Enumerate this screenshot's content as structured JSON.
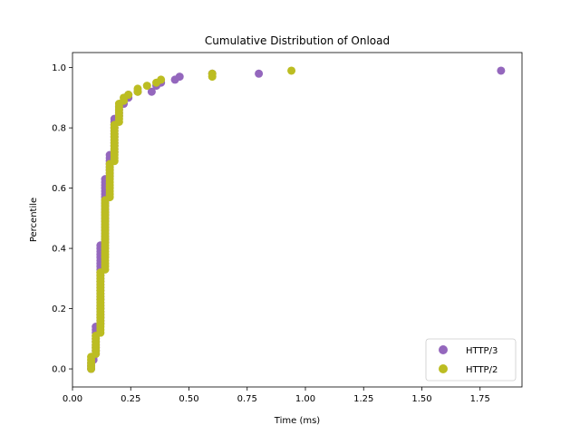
{
  "chart_data": {
    "type": "scatter",
    "title": "Cumulative Distribution of Onload",
    "xlabel": "Time (ms)",
    "ylabel": "Percentile",
    "xlim": [
      0.0,
      1.93
    ],
    "ylim": [
      -0.06,
      1.05
    ],
    "xticks": [
      0.0,
      0.25,
      0.5,
      0.75,
      1.0,
      1.25,
      1.5,
      1.75
    ],
    "xtick_labels": [
      "0.00",
      "0.25",
      "0.50",
      "0.75",
      "1.00",
      "1.25",
      "1.50",
      "1.75"
    ],
    "yticks": [
      0.0,
      0.2,
      0.4,
      0.6,
      0.8,
      1.0
    ],
    "ytick_labels": [
      "0.0",
      "0.2",
      "0.4",
      "0.6",
      "0.8",
      "1.0"
    ],
    "grid": false,
    "legend_position": "bottom-right",
    "series": [
      {
        "name": "HTTP/3",
        "color": "#9467bd",
        "points": [
          [
            0.08,
            0.0
          ],
          [
            0.08,
            0.01
          ],
          [
            0.08,
            0.02
          ],
          [
            0.09,
            0.03
          ],
          [
            0.09,
            0.04
          ],
          [
            0.1,
            0.05
          ],
          [
            0.1,
            0.06
          ],
          [
            0.1,
            0.07
          ],
          [
            0.1,
            0.08
          ],
          [
            0.1,
            0.09
          ],
          [
            0.1,
            0.1
          ],
          [
            0.1,
            0.11
          ],
          [
            0.1,
            0.12
          ],
          [
            0.1,
            0.13
          ],
          [
            0.1,
            0.14
          ],
          [
            0.12,
            0.15
          ],
          [
            0.12,
            0.16
          ],
          [
            0.12,
            0.17
          ],
          [
            0.12,
            0.18
          ],
          [
            0.12,
            0.19
          ],
          [
            0.12,
            0.2
          ],
          [
            0.12,
            0.21
          ],
          [
            0.12,
            0.22
          ],
          [
            0.12,
            0.23
          ],
          [
            0.12,
            0.24
          ],
          [
            0.12,
            0.25
          ],
          [
            0.12,
            0.26
          ],
          [
            0.12,
            0.27
          ],
          [
            0.12,
            0.28
          ],
          [
            0.12,
            0.29
          ],
          [
            0.12,
            0.3
          ],
          [
            0.12,
            0.31
          ],
          [
            0.12,
            0.32
          ],
          [
            0.12,
            0.33
          ],
          [
            0.12,
            0.34
          ],
          [
            0.12,
            0.35
          ],
          [
            0.12,
            0.36
          ],
          [
            0.12,
            0.37
          ],
          [
            0.12,
            0.38
          ],
          [
            0.12,
            0.39
          ],
          [
            0.12,
            0.4
          ],
          [
            0.12,
            0.41
          ],
          [
            0.14,
            0.42
          ],
          [
            0.14,
            0.43
          ],
          [
            0.14,
            0.44
          ],
          [
            0.14,
            0.45
          ],
          [
            0.14,
            0.46
          ],
          [
            0.14,
            0.47
          ],
          [
            0.14,
            0.48
          ],
          [
            0.14,
            0.49
          ],
          [
            0.14,
            0.5
          ],
          [
            0.14,
            0.51
          ],
          [
            0.14,
            0.52
          ],
          [
            0.14,
            0.53
          ],
          [
            0.14,
            0.54
          ],
          [
            0.14,
            0.55
          ],
          [
            0.14,
            0.56
          ],
          [
            0.14,
            0.57
          ],
          [
            0.14,
            0.58
          ],
          [
            0.14,
            0.59
          ],
          [
            0.14,
            0.6
          ],
          [
            0.14,
            0.61
          ],
          [
            0.14,
            0.62
          ],
          [
            0.14,
            0.63
          ],
          [
            0.16,
            0.64
          ],
          [
            0.16,
            0.65
          ],
          [
            0.16,
            0.66
          ],
          [
            0.16,
            0.67
          ],
          [
            0.16,
            0.68
          ],
          [
            0.16,
            0.69
          ],
          [
            0.16,
            0.7
          ],
          [
            0.16,
            0.71
          ],
          [
            0.18,
            0.72
          ],
          [
            0.18,
            0.73
          ],
          [
            0.18,
            0.74
          ],
          [
            0.18,
            0.75
          ],
          [
            0.18,
            0.76
          ],
          [
            0.18,
            0.77
          ],
          [
            0.18,
            0.78
          ],
          [
            0.18,
            0.79
          ],
          [
            0.18,
            0.8
          ],
          [
            0.18,
            0.81
          ],
          [
            0.18,
            0.82
          ],
          [
            0.18,
            0.83
          ],
          [
            0.2,
            0.84
          ],
          [
            0.2,
            0.85
          ],
          [
            0.2,
            0.86
          ],
          [
            0.2,
            0.87
          ],
          [
            0.22,
            0.88
          ],
          [
            0.24,
            0.9
          ],
          [
            0.24,
            0.91
          ],
          [
            0.28,
            0.92
          ],
          [
            0.34,
            0.92
          ],
          [
            0.36,
            0.94
          ],
          [
            0.38,
            0.95
          ],
          [
            0.44,
            0.96
          ],
          [
            0.46,
            0.97
          ],
          [
            0.6,
            0.98
          ],
          [
            0.8,
            0.98
          ],
          [
            1.84,
            0.99
          ]
        ]
      },
      {
        "name": "HTTP/2",
        "color": "#bcbd22",
        "points": [
          [
            0.08,
            0.0
          ],
          [
            0.08,
            0.01
          ],
          [
            0.08,
            0.02
          ],
          [
            0.08,
            0.03
          ],
          [
            0.08,
            0.04
          ],
          [
            0.1,
            0.05
          ],
          [
            0.1,
            0.06
          ],
          [
            0.1,
            0.07
          ],
          [
            0.1,
            0.08
          ],
          [
            0.1,
            0.09
          ],
          [
            0.1,
            0.1
          ],
          [
            0.1,
            0.11
          ],
          [
            0.12,
            0.12
          ],
          [
            0.12,
            0.13
          ],
          [
            0.12,
            0.14
          ],
          [
            0.12,
            0.15
          ],
          [
            0.12,
            0.16
          ],
          [
            0.12,
            0.17
          ],
          [
            0.12,
            0.18
          ],
          [
            0.12,
            0.19
          ],
          [
            0.12,
            0.2
          ],
          [
            0.12,
            0.21
          ],
          [
            0.12,
            0.22
          ],
          [
            0.12,
            0.23
          ],
          [
            0.12,
            0.24
          ],
          [
            0.12,
            0.25
          ],
          [
            0.12,
            0.26
          ],
          [
            0.12,
            0.27
          ],
          [
            0.12,
            0.28
          ],
          [
            0.12,
            0.29
          ],
          [
            0.12,
            0.3
          ],
          [
            0.12,
            0.31
          ],
          [
            0.12,
            0.32
          ],
          [
            0.14,
            0.33
          ],
          [
            0.14,
            0.34
          ],
          [
            0.14,
            0.35
          ],
          [
            0.14,
            0.36
          ],
          [
            0.14,
            0.37
          ],
          [
            0.14,
            0.38
          ],
          [
            0.14,
            0.39
          ],
          [
            0.14,
            0.4
          ],
          [
            0.14,
            0.41
          ],
          [
            0.14,
            0.42
          ],
          [
            0.14,
            0.43
          ],
          [
            0.14,
            0.44
          ],
          [
            0.14,
            0.45
          ],
          [
            0.14,
            0.46
          ],
          [
            0.14,
            0.47
          ],
          [
            0.14,
            0.48
          ],
          [
            0.14,
            0.49
          ],
          [
            0.14,
            0.5
          ],
          [
            0.14,
            0.51
          ],
          [
            0.14,
            0.52
          ],
          [
            0.14,
            0.53
          ],
          [
            0.14,
            0.54
          ],
          [
            0.14,
            0.55
          ],
          [
            0.14,
            0.56
          ],
          [
            0.16,
            0.57
          ],
          [
            0.16,
            0.58
          ],
          [
            0.16,
            0.59
          ],
          [
            0.16,
            0.6
          ],
          [
            0.16,
            0.61
          ],
          [
            0.16,
            0.62
          ],
          [
            0.16,
            0.63
          ],
          [
            0.16,
            0.64
          ],
          [
            0.16,
            0.65
          ],
          [
            0.16,
            0.66
          ],
          [
            0.16,
            0.67
          ],
          [
            0.16,
            0.68
          ],
          [
            0.18,
            0.69
          ],
          [
            0.18,
            0.7
          ],
          [
            0.18,
            0.71
          ],
          [
            0.18,
            0.72
          ],
          [
            0.18,
            0.73
          ],
          [
            0.18,
            0.74
          ],
          [
            0.18,
            0.75
          ],
          [
            0.18,
            0.76
          ],
          [
            0.18,
            0.77
          ],
          [
            0.18,
            0.78
          ],
          [
            0.18,
            0.79
          ],
          [
            0.18,
            0.8
          ],
          [
            0.18,
            0.81
          ],
          [
            0.2,
            0.82
          ],
          [
            0.2,
            0.83
          ],
          [
            0.2,
            0.84
          ],
          [
            0.2,
            0.85
          ],
          [
            0.2,
            0.86
          ],
          [
            0.2,
            0.87
          ],
          [
            0.2,
            0.88
          ],
          [
            0.22,
            0.89
          ],
          [
            0.22,
            0.9
          ],
          [
            0.24,
            0.91
          ],
          [
            0.28,
            0.92
          ],
          [
            0.28,
            0.93
          ],
          [
            0.32,
            0.94
          ],
          [
            0.36,
            0.95
          ],
          [
            0.38,
            0.96
          ],
          [
            0.6,
            0.97
          ],
          [
            0.6,
            0.98
          ],
          [
            0.94,
            0.99
          ]
        ]
      }
    ]
  }
}
